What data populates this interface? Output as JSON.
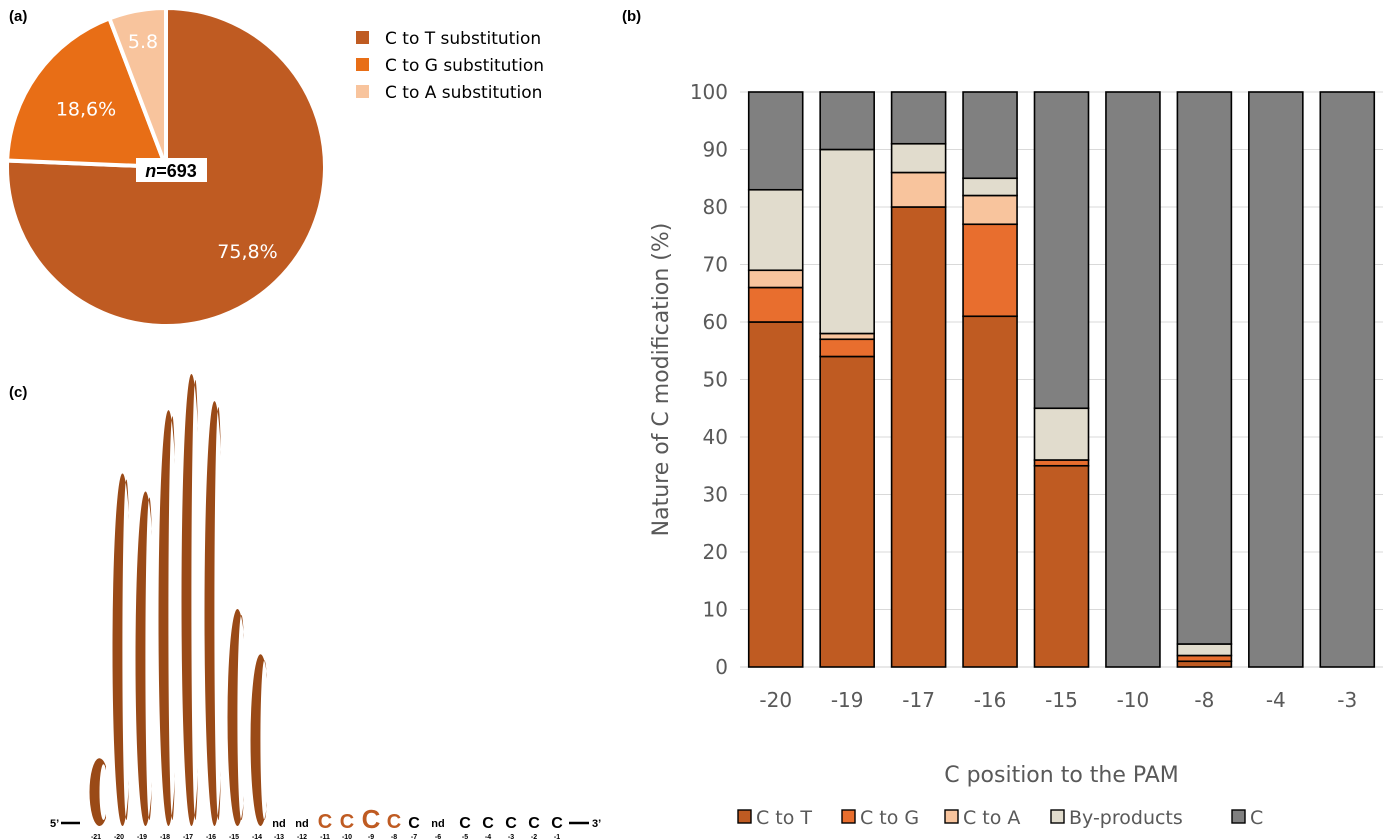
{
  "panels": {
    "a": "(a)",
    "b": "(b)",
    "c": "(c)"
  },
  "chart_data": [
    {
      "type": "pie",
      "panel": "(a)",
      "slices": [
        {
          "label": "C to T substitution",
          "value": 75.8,
          "text": "75,8%",
          "color": "#bf5b22"
        },
        {
          "label": "C to G substitution",
          "value": 18.6,
          "text": "18,6%",
          "color": "#e86e16"
        },
        {
          "label": "C to A substitution",
          "value": 5.8,
          "text": "5.8",
          "color": "#f8c49d"
        }
      ],
      "center_label_n": "n",
      "center_label_rest": "=693",
      "legend": [
        "C to T substitution",
        "C to G substitution",
        "C to A substitution"
      ],
      "legend_position": "right"
    },
    {
      "type": "bar",
      "stacked": true,
      "panel": "(b)",
      "categories": [
        "-20",
        "-19",
        "-17",
        "-16",
        "-15",
        "-10",
        "-8",
        "-4",
        "-3"
      ],
      "series": [
        {
          "name": "C to T",
          "color": "#bf5b22",
          "values": [
            60,
            54,
            80,
            61,
            35,
            0,
            1,
            0,
            0
          ]
        },
        {
          "name": "C to G",
          "color": "#e86e2e",
          "values": [
            6,
            3,
            0,
            16,
            1,
            0,
            1,
            0,
            0
          ]
        },
        {
          "name": "C to A",
          "color": "#f8c49d",
          "values": [
            3,
            1,
            6,
            5,
            0,
            0,
            0,
            0,
            0
          ]
        },
        {
          "name": "By-products",
          "color": "#e1dccd",
          "values": [
            14,
            32,
            5,
            3,
            9,
            0,
            2,
            0,
            0
          ]
        },
        {
          "name": "C",
          "color": "#808080",
          "values": [
            17,
            10,
            9,
            15,
            55,
            100,
            96,
            100,
            100
          ]
        }
      ],
      "xlabel": "C position to the PAM",
      "ylabel": "Nature of C modification (%)",
      "ylim": [
        0,
        100
      ],
      "yticks": [
        0,
        10,
        20,
        30,
        40,
        50,
        60,
        70,
        80,
        90,
        100
      ],
      "grid": true,
      "legend_position": "bottom"
    },
    {
      "type": "sequence-logo",
      "panel": "(c)",
      "prefix": "5’",
      "suffix": "3’",
      "positions": [
        {
          "pos": "-21",
          "letter": "C",
          "height": 0.15
        },
        {
          "pos": "-20",
          "letter": "C",
          "height": 0.78
        },
        {
          "pos": "-19",
          "letter": "C",
          "height": 0.74
        },
        {
          "pos": "-18",
          "letter": "C",
          "height": 0.92
        },
        {
          "pos": "-17",
          "letter": "C",
          "height": 1.0
        },
        {
          "pos": "-16",
          "letter": "C",
          "height": 0.94
        },
        {
          "pos": "-15",
          "letter": "C",
          "height": 0.48
        },
        {
          "pos": "-14",
          "letter": "C",
          "height": 0.38
        },
        {
          "pos": "-13",
          "letter": "nd",
          "height": 0
        },
        {
          "pos": "-12",
          "letter": "nd",
          "height": 0
        },
        {
          "pos": "-11",
          "letter": "C",
          "height": 0.04
        },
        {
          "pos": "-10",
          "letter": "C",
          "height": 0.04
        },
        {
          "pos": "-9",
          "letter": "C",
          "height": 0.07
        },
        {
          "pos": "-8",
          "letter": "C",
          "height": 0.04
        },
        {
          "pos": "-7",
          "letter": "C",
          "height": 0.03
        },
        {
          "pos": "-6",
          "letter": "nd",
          "height": 0
        },
        {
          "pos": "-5",
          "letter": "C",
          "height": 0.03
        },
        {
          "pos": "-4",
          "letter": "C",
          "height": 0.03
        },
        {
          "pos": "-3",
          "letter": "C",
          "height": 0.03
        },
        {
          "pos": "-2",
          "letter": "C",
          "height": 0.03
        },
        {
          "pos": "-1",
          "letter": "C",
          "height": 0.03
        }
      ],
      "colors": {
        "edited": "#9a4a17",
        "weak": "#bf5b22",
        "none": "#000000"
      }
    }
  ]
}
